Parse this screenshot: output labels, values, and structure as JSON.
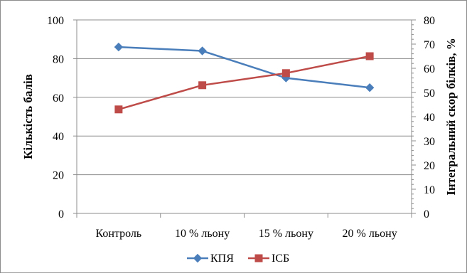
{
  "chart_data": {
    "type": "line",
    "title": "",
    "categories": [
      "Контроль",
      "10 % льону",
      "15 % льону",
      "20 % льону"
    ],
    "ylabel_left": "Кількість балів",
    "ylabel_right": "Інтегральний скор білків, %",
    "ylim_left": [
      0,
      100
    ],
    "ylim_right": [
      0,
      80
    ],
    "yticks_left": [
      0,
      20,
      40,
      60,
      80,
      100
    ],
    "yticks_right": [
      0,
      10,
      20,
      30,
      40,
      50,
      60,
      70,
      80
    ],
    "grid": true,
    "legend_position": "bottom",
    "series": [
      {
        "name": "КПЯ",
        "axis": "left",
        "color": "#4a7ebb",
        "marker": "diamond",
        "values": [
          86,
          84,
          70,
          65
        ]
      },
      {
        "name": "ІСБ",
        "axis": "right",
        "color": "#be4b48",
        "marker": "square",
        "values": [
          43,
          53,
          58,
          65
        ]
      }
    ]
  }
}
